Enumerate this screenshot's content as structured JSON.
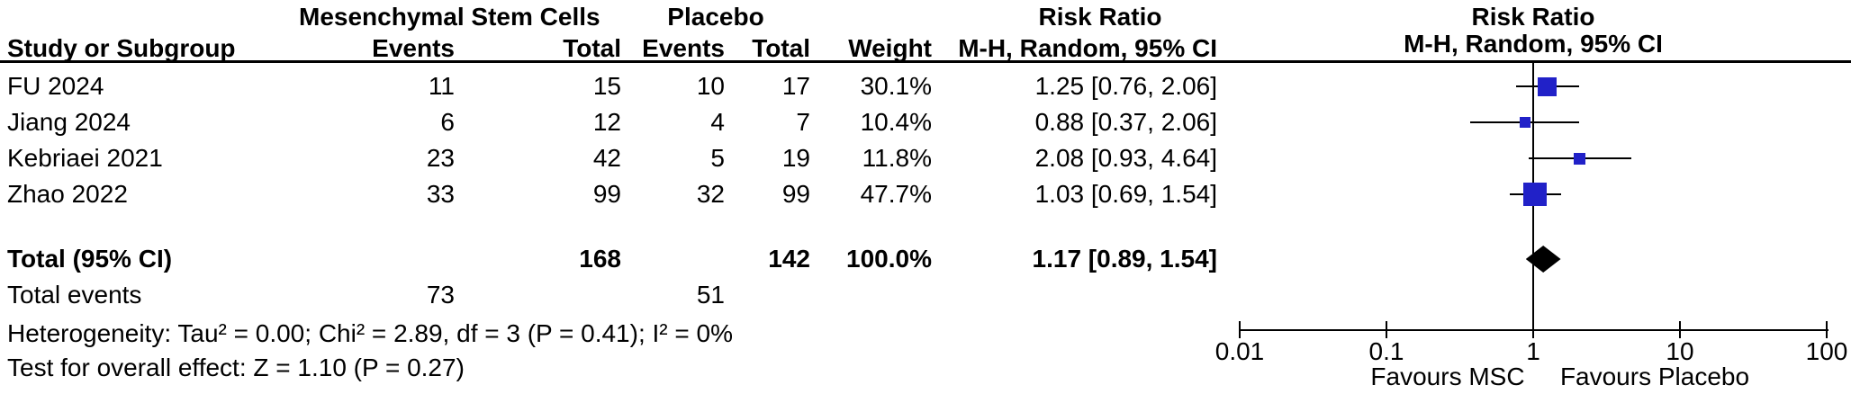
{
  "header": {
    "group1": "Mesenchymal Stem Cells",
    "group2": "Placebo",
    "risk_ratio": "Risk Ratio",
    "method": "M-H, Random, 95% CI",
    "columns": {
      "study": "Study or Subgroup",
      "events": "Events",
      "total": "Total",
      "weight": "Weight",
      "ci": "M-H, Random, 95% CI"
    }
  },
  "table": {
    "rows": [
      {
        "study": "FU 2024",
        "events1": "11",
        "total1": "15",
        "events2": "10",
        "total2": "17",
        "weight": "30.1%",
        "rr": "1.25 [0.76, 2.06]"
      },
      {
        "study": "Jiang 2024",
        "events1": "6",
        "total1": "12",
        "events2": "4",
        "total2": "7",
        "weight": "10.4%",
        "rr": "0.88 [0.37, 2.06]"
      },
      {
        "study": "Kebriaei 2021",
        "events1": "23",
        "total1": "42",
        "events2": "5",
        "total2": "19",
        "weight": "11.8%",
        "rr": "2.08 [0.93, 4.64]"
      },
      {
        "study": "Zhao 2022",
        "events1": "33",
        "total1": "99",
        "events2": "32",
        "total2": "99",
        "weight": "47.7%",
        "rr": "1.03 [0.69, 1.54]"
      }
    ],
    "total_row": {
      "study": "Total (95% CI)",
      "total1": "168",
      "total2": "142",
      "weight": "100.0%",
      "rr": "1.17 [0.89, 1.54]"
    },
    "total_events_row": {
      "study": "Total events",
      "events1": "73",
      "events2": "51"
    },
    "footnotes": {
      "heterogeneity": "Heterogeneity: Tau² = 0.00; Chi² = 2.89, df = 3 (P = 0.41); I² = 0%",
      "overall_effect": "Test for overall effect: Z = 1.10 (P = 0.27)"
    }
  },
  "axis": {
    "tick_labels": [
      "0.01",
      "0.1",
      "1",
      "10",
      "100"
    ],
    "favours_left": "Favours MSC",
    "favours_right": "Favours Placebo"
  },
  "colors": {
    "marker_blue": "#2121C8",
    "diamond_black": "#000000",
    "line_black": "#000000"
  },
  "chart_data": {
    "type": "scatter",
    "subtype": "forest-plot",
    "title": "Risk Ratio  M-H, Random, 95% CI",
    "x_scale": "log10",
    "xlim": [
      0.01,
      100
    ],
    "x_ticks": [
      0.01,
      0.1,
      1,
      10,
      100
    ],
    "reference_line": 1,
    "series": [
      {
        "name": "FU 2024",
        "rr": 1.25,
        "ci_low": 0.76,
        "ci_high": 2.06,
        "weight_pct": 30.1
      },
      {
        "name": "Jiang 2024",
        "rr": 0.88,
        "ci_low": 0.37,
        "ci_high": 2.06,
        "weight_pct": 10.4
      },
      {
        "name": "Kebriaei 2021",
        "rr": 2.08,
        "ci_low": 0.93,
        "ci_high": 4.64,
        "weight_pct": 11.8
      },
      {
        "name": "Zhao 2022",
        "rr": 1.03,
        "ci_low": 0.69,
        "ci_high": 1.54,
        "weight_pct": 47.7
      }
    ],
    "total": {
      "name": "Total (95% CI)",
      "rr": 1.17,
      "ci_low": 0.89,
      "ci_high": 1.54,
      "weight_pct": 100.0
    },
    "annotations": [
      "Favours MSC",
      "Favours Placebo"
    ],
    "legend_position": "none",
    "grid": false
  }
}
